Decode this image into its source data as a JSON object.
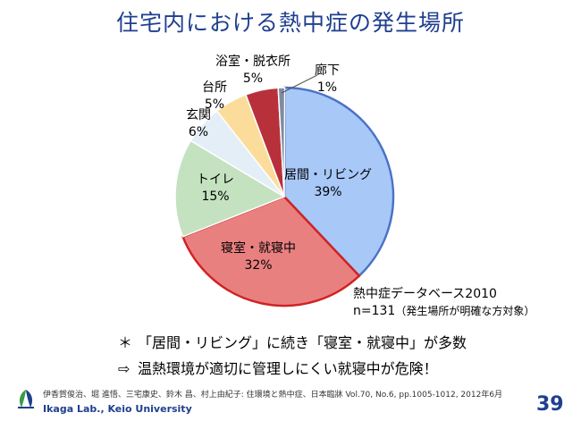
{
  "title": "住宅内における熱中症の発生場所",
  "chart_data": {
    "type": "pie",
    "slices": [
      {
        "label": "居間・リビング",
        "pct_text": "39%",
        "value": 39,
        "color": "#a8c8f8",
        "stroke": "#4a72c4"
      },
      {
        "label": "寝室・就寝中",
        "pct_text": "32%",
        "value": 32,
        "color": "#e98080",
        "stroke": "#d22222"
      },
      {
        "label": "トイレ",
        "pct_text": "15%",
        "value": 15,
        "color": "#c4e2c0",
        "stroke": "#ffffff"
      },
      {
        "label": "玄関",
        "pct_text": "6%",
        "value": 6,
        "color": "#e3eef7",
        "stroke": "#ffffff"
      },
      {
        "label": "台所",
        "pct_text": "5%",
        "value": 5,
        "color": "#fbdc9a",
        "stroke": "#ffffff"
      },
      {
        "label": "浴室・脱衣所",
        "pct_text": "5%",
        "value": 5,
        "color": "#b8313a",
        "stroke": "#ffffff"
      },
      {
        "label": "廊下",
        "pct_text": "1%",
        "value": 1,
        "color": "#7f8ca0",
        "stroke": "#ffffff"
      }
    ]
  },
  "note": {
    "line1": "熱中症データベース2010",
    "line2": "n=131",
    "line2_sub": "（発生場所が明確な方対象）"
  },
  "bullets": {
    "b1_mark": "＊",
    "b1": "「居間・リビング」に続き「寝室・就寝中」が多数",
    "b2_mark": "⇨",
    "b2": "温熱環境が適切に管理しにくい就寝中が危険！"
  },
  "footer": {
    "citation": "伊香賀俊治、堀 進悟、三宅康史、鈴木 昌、村上由紀子:  住環境と熱中症、日本臨牀 Vol.70, No.6, pp.1005-1012, 2012年6月",
    "lab": "Ikaga Lab., Keio University",
    "page": "39"
  }
}
